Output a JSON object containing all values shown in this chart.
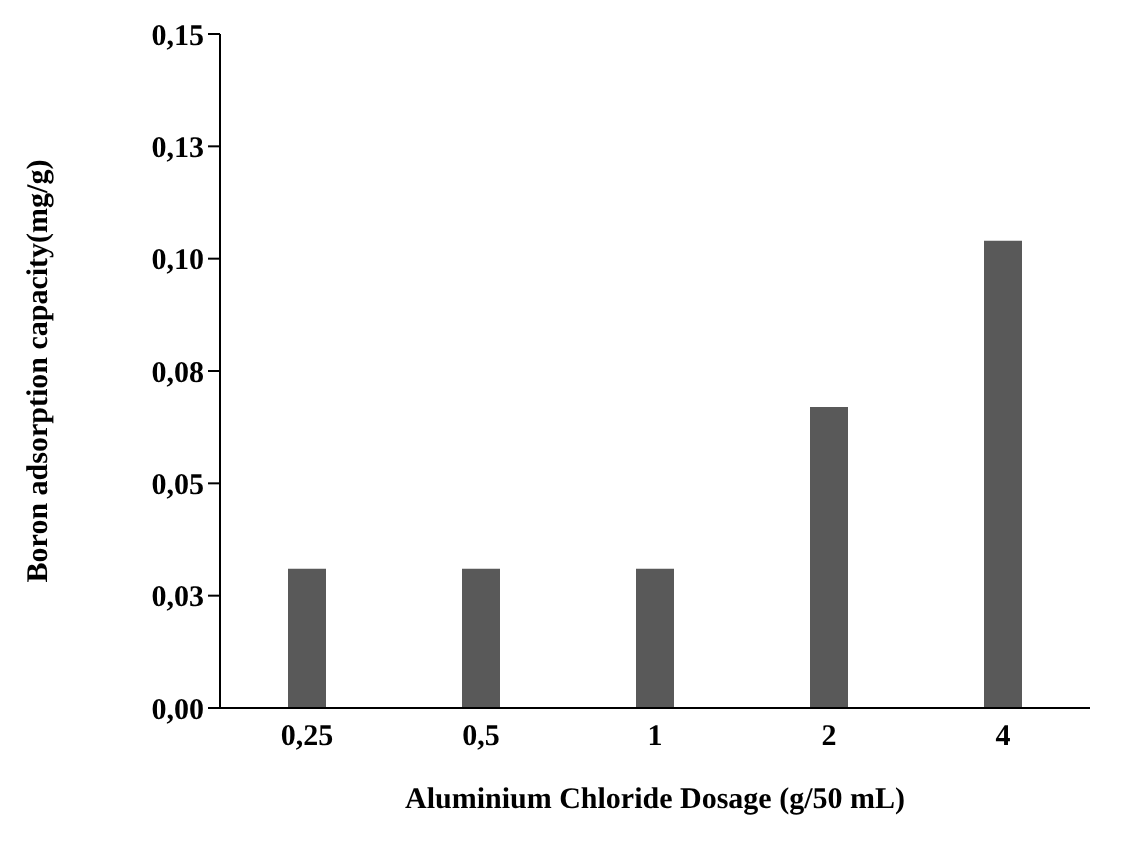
{
  "chart_data": {
    "type": "bar",
    "xlabel": "Aluminium Chloride Dosage (g/50 mL)",
    "ylabel": "Boron adsorption capacity(mg/g)",
    "categories": [
      "0,25",
      "0,5",
      "1",
      "2",
      "4"
    ],
    "values": [
      0.031,
      0.031,
      0.031,
      0.067,
      0.104
    ],
    "color": "#595959",
    "ylim": [
      0,
      0.15
    ],
    "yticks": [
      {
        "value": 0,
        "label": "0,00"
      },
      {
        "value": 0.025,
        "label": "0,03"
      },
      {
        "value": 0.05,
        "label": "0,05"
      },
      {
        "value": 0.075,
        "label": "0,08"
      },
      {
        "value": 0.1,
        "label": "0,10"
      },
      {
        "value": 0.125,
        "label": "0,13"
      },
      {
        "value": 0.15,
        "label": "0,15"
      }
    ],
    "grid": false,
    "legend": false
  }
}
